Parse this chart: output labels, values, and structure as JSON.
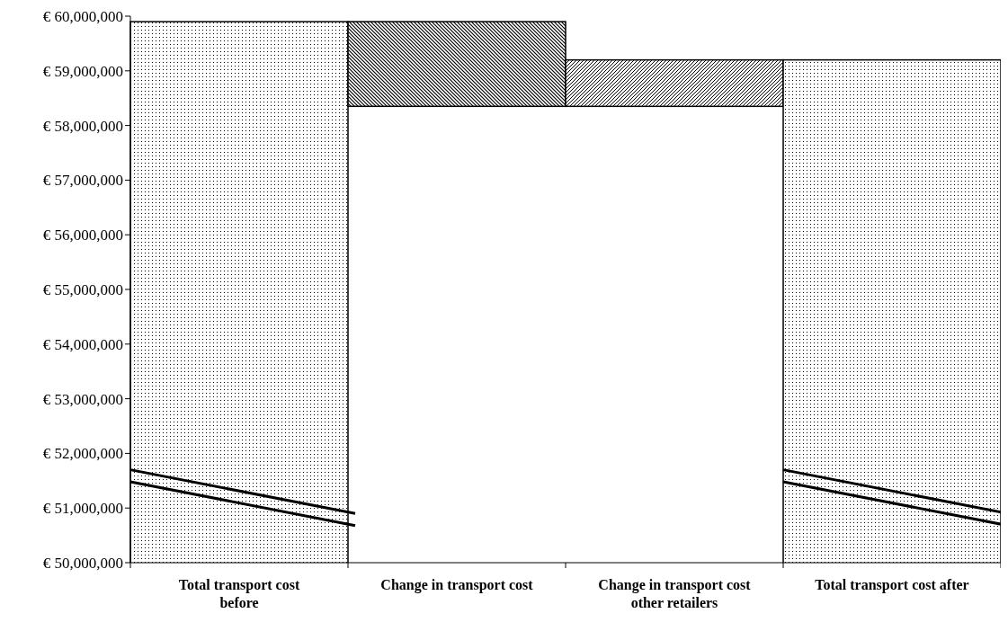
{
  "chart_data": {
    "type": "bar",
    "categories": [
      "Total transport cost before",
      "Change in transport cost",
      "Change in transport cost other retailers",
      "Total transport cost after"
    ],
    "values": [
      59900000,
      -1550000,
      850000,
      59200000
    ],
    "base": [
      null,
      59900000,
      58350000,
      null
    ],
    "colors": [
      "#000000",
      "#000000",
      "#000000",
      "#000000"
    ],
    "ylim": [
      50000000,
      60000000
    ],
    "yticks": [
      {
        "value": 50000000,
        "label": "€ 50,000,000"
      },
      {
        "value": 51000000,
        "label": "€ 51,000,000"
      },
      {
        "value": 52000000,
        "label": "€ 52,000,000"
      },
      {
        "value": 53000000,
        "label": "€ 53,000,000"
      },
      {
        "value": 54000000,
        "label": "€ 54,000,000"
      },
      {
        "value": 55000000,
        "label": "€ 55,000,000"
      },
      {
        "value": 56000000,
        "label": "€ 56,000,000"
      },
      {
        "value": 57000000,
        "label": "€ 57,000,000"
      },
      {
        "value": 58000000,
        "label": "€ 58,000,000"
      },
      {
        "value": 59000000,
        "label": "€ 59,000,000"
      },
      {
        "value": 60000000,
        "label": "€ 60,000,000"
      }
    ],
    "grid": false
  }
}
